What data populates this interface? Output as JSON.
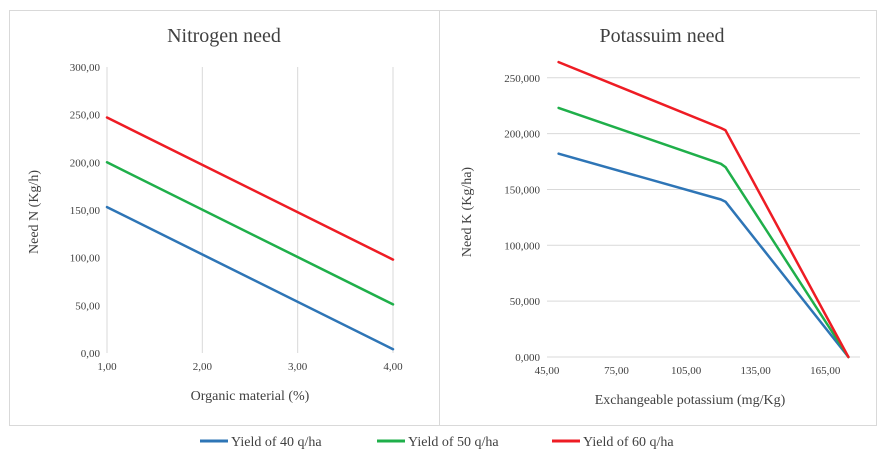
{
  "colors": {
    "s40": "#2e75b6",
    "s50": "#1faf4a",
    "s60": "#ee1c24"
  },
  "legend": [
    {
      "label": "Yield of 40 q/ha",
      "color": "#2e75b6"
    },
    {
      "label": "Yield of 50 q/ha",
      "color": "#1faf4a"
    },
    {
      "label": "Yield of 60 q/ha",
      "color": "#ee1c24"
    }
  ],
  "chart_data": [
    {
      "type": "line",
      "title": "Nitrogen need",
      "xlabel": "Organic material (%)",
      "ylabel": "Need N (Kg/h)",
      "xlim": [
        1,
        4
      ],
      "ylim": [
        0,
        300
      ],
      "xticks": [
        1,
        2,
        3,
        4
      ],
      "yticks": [
        0,
        50,
        100,
        150,
        200,
        250,
        300
      ],
      "xtick_labels": [
        "1,00",
        "2,00",
        "3,00",
        "4,00"
      ],
      "ytick_labels": [
        "0,00",
        "50,00",
        "100,00",
        "150,00",
        "200,00",
        "250,00",
        "300,00"
      ],
      "grid": "vertical",
      "series": [
        {
          "name": "Yield of 40 q/ha",
          "color": "#2e75b6",
          "x": [
            1,
            4
          ],
          "y": [
            153,
            4
          ]
        },
        {
          "name": "Yield of 50 q/ha",
          "color": "#1faf4a",
          "x": [
            1,
            4
          ],
          "y": [
            200,
            51
          ]
        },
        {
          "name": "Yield of 60 q/ha",
          "color": "#ee1c24",
          "x": [
            1,
            4
          ],
          "y": [
            247,
            98
          ]
        }
      ]
    },
    {
      "type": "line",
      "title": "Potassuim need",
      "xlabel": "Exchangeable potassium (mg/Kg)",
      "ylabel": "Need K (Kg/ha)",
      "xlim": [
        45,
        180
      ],
      "ylim": [
        0,
        265
      ],
      "xticks": [
        45,
        75,
        105,
        135,
        165
      ],
      "yticks": [
        0,
        50,
        100,
        150,
        200,
        250
      ],
      "xtick_labels": [
        "45,00",
        "75,00",
        "105,00",
        "135,00",
        "165,00"
      ],
      "ytick_labels": [
        "0,000",
        "50,000",
        "100,000",
        "150,000",
        "200,000",
        "250,000"
      ],
      "grid": "horizontal",
      "series": [
        {
          "name": "Yield of 40 q/ha",
          "color": "#2e75b6",
          "x": [
            50,
            120,
            122,
            175
          ],
          "y": [
            182,
            141,
            139,
            0
          ]
        },
        {
          "name": "Yield of 50 q/ha",
          "color": "#1faf4a",
          "x": [
            50,
            120,
            122,
            175
          ],
          "y": [
            223,
            173,
            170,
            0
          ]
        },
        {
          "name": "Yield of 60 q/ha",
          "color": "#ee1c24",
          "x": [
            50,
            120,
            122,
            175
          ],
          "y": [
            264,
            205,
            203,
            0
          ]
        }
      ]
    }
  ]
}
